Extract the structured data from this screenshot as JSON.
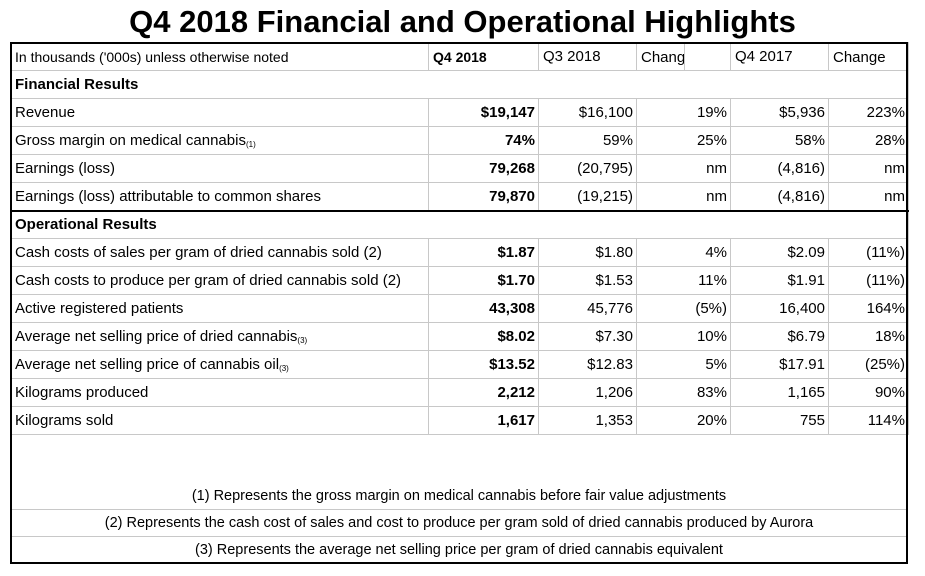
{
  "title": "Q4 2018 Financial and Operational Highlights",
  "header": {
    "label": "In thousands ('000s) unless otherwise noted",
    "q4_2018": "Q4 2018",
    "q3_2018": "Q3 2018",
    "change1_line1": "Change",
    "change1_line2": "(%)",
    "q4_2017": "Q4 2017",
    "change2_line1": "Change",
    "change2_line2": "(%)"
  },
  "sections": {
    "financial": "Financial Results",
    "operational": "Operational Results"
  },
  "financial_rows": [
    {
      "label": "Revenue",
      "fn": "",
      "q4_2018": "$19,147",
      "q3_2018": "$16,100",
      "chg_q3": "19%",
      "q4_2017": "$5,936",
      "chg_q4": "223%"
    },
    {
      "label": "Gross margin on medical cannabis",
      "fn": "(1)",
      "q4_2018": "74%",
      "q3_2018": "59%",
      "chg_q3": "25%",
      "q4_2017": "58%",
      "chg_q4": "28%"
    },
    {
      "label": "Earnings (loss)",
      "fn": "",
      "q4_2018": "79,268",
      "q3_2018": "(20,795)",
      "chg_q3": "nm",
      "q4_2017": "(4,816)",
      "chg_q4": "nm"
    },
    {
      "label": "Earnings (loss) attributable to common shares",
      "fn": "",
      "q4_2018": "79,870",
      "q3_2018": "(19,215)",
      "chg_q3": "nm",
      "q4_2017": "(4,816)",
      "chg_q4": "nm"
    }
  ],
  "operational_rows": [
    {
      "label": "Cash costs of sales per gram of dried cannabis sold (2)",
      "fn": "",
      "q4_2018": "$1.87",
      "q3_2018": "$1.80",
      "chg_q3": "4%",
      "q4_2017": "$2.09",
      "chg_q4": "(11%)"
    },
    {
      "label": "Cash costs to produce per gram of dried cannabis sold (2)",
      "fn": "",
      "q4_2018": "$1.70",
      "q3_2018": "$1.53",
      "chg_q3": "11%",
      "q4_2017": "$1.91",
      "chg_q4": "(11%)"
    },
    {
      "label": "Active registered patients",
      "fn": "",
      "q4_2018": "43,308",
      "q3_2018": "45,776",
      "chg_q3": "(5%)",
      "q4_2017": "16,400",
      "chg_q4": "164%"
    },
    {
      "label": "Average net selling price of dried cannabis",
      "fn": "(3)",
      "q4_2018": "$8.02",
      "q3_2018": "$7.30",
      "chg_q3": "10%",
      "q4_2017": "$6.79",
      "chg_q4": "18%"
    },
    {
      "label": "Average net selling price of cannabis oil",
      "fn": "(3)",
      "q4_2018": "$13.52",
      "q3_2018": "$12.83",
      "chg_q3": "5%",
      "q4_2017": "$17.91",
      "chg_q4": "(25%)"
    },
    {
      "label": "Kilograms produced",
      "fn": "",
      "q4_2018": "2,212",
      "q3_2018": "1,206",
      "chg_q3": "83%",
      "q4_2017": "1,165",
      "chg_q4": "90%"
    },
    {
      "label": "Kilograms sold",
      "fn": "",
      "q4_2018": "1,617",
      "q3_2018": "1,353",
      "chg_q3": "20%",
      "q4_2017": "755",
      "chg_q4": "114%"
    }
  ],
  "footnotes": [
    "(1) Represents the gross margin on medical cannabis before fair value adjustments",
    "(2) Represents the cash cost of sales and cost to produce per gram sold of dried cannabis produced by Aurora",
    "(3) Represents the average net selling price per gram of dried cannabis equivalent"
  ]
}
